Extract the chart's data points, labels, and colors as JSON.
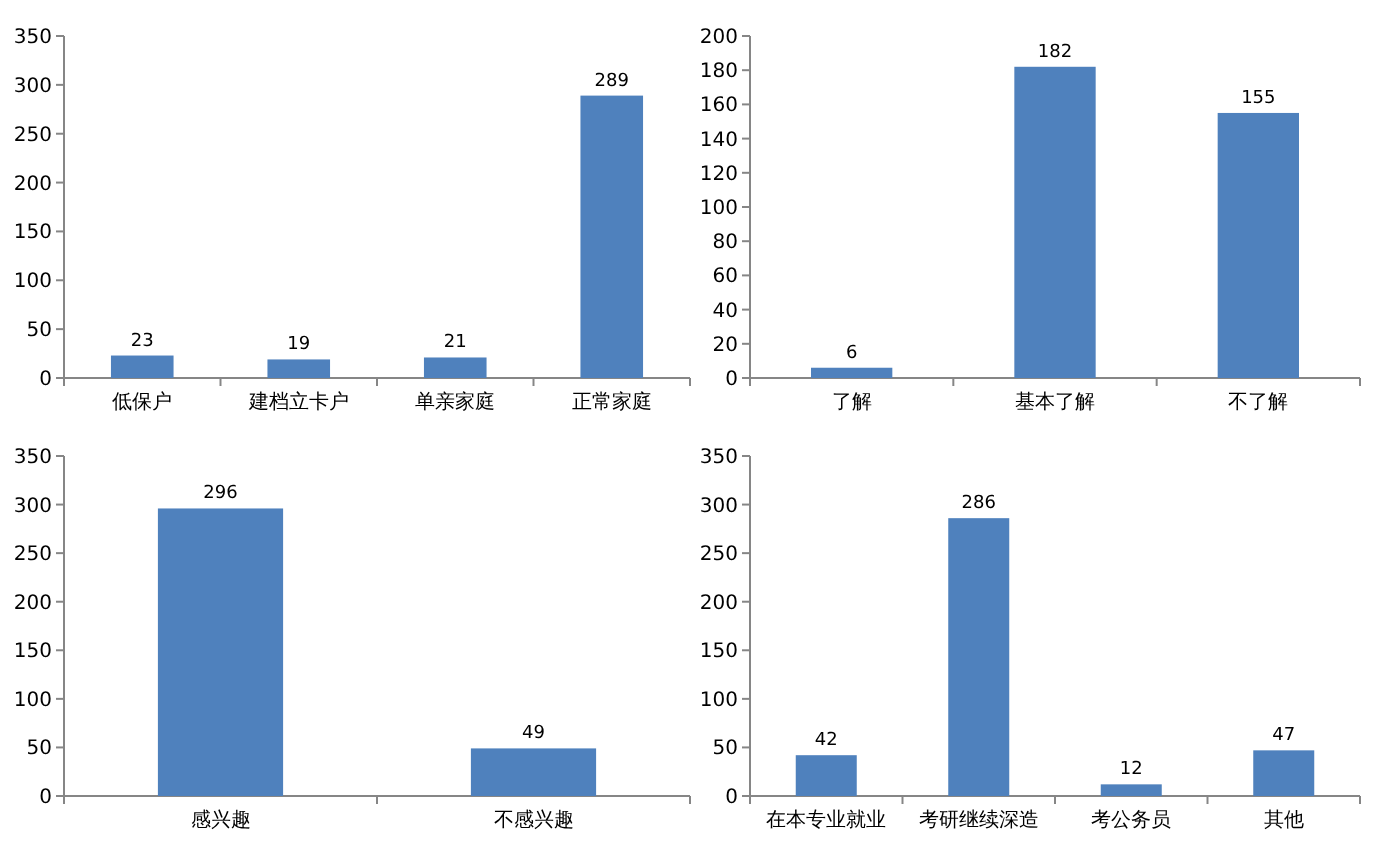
{
  "chart_data": [
    {
      "type": "bar",
      "categories": [
        "低保户",
        "建档立卡户",
        "单亲家庭",
        "正常家庭"
      ],
      "values": [
        23,
        19,
        21,
        289
      ],
      "color": "#4f81bd",
      "ylim": [
        0,
        350
      ],
      "yticks": [
        0,
        50,
        100,
        150,
        200,
        250,
        300,
        350
      ],
      "data_labels": true
    },
    {
      "type": "bar",
      "categories": [
        "了解",
        "基本了解",
        "不了解"
      ],
      "values": [
        6,
        182,
        155
      ],
      "color": "#4f81bd",
      "ylim": [
        0,
        200
      ],
      "yticks": [
        0,
        20,
        40,
        60,
        80,
        100,
        120,
        140,
        160,
        180,
        200
      ],
      "data_labels": true
    },
    {
      "type": "bar",
      "categories": [
        "感兴趣",
        "不感兴趣"
      ],
      "values": [
        296,
        49
      ],
      "color": "#4f81bd",
      "ylim": [
        0,
        350
      ],
      "yticks": [
        0,
        50,
        100,
        150,
        200,
        250,
        300,
        350
      ],
      "data_labels": true
    },
    {
      "type": "bar",
      "categories": [
        "在本专业就业",
        "考研继续深造",
        "考公务员",
        "其他"
      ],
      "values": [
        42,
        286,
        12,
        47
      ],
      "color": "#4f81bd",
      "ylim": [
        0,
        350
      ],
      "yticks": [
        0,
        50,
        100,
        150,
        200,
        250,
        300,
        350
      ],
      "data_labels": true
    }
  ]
}
